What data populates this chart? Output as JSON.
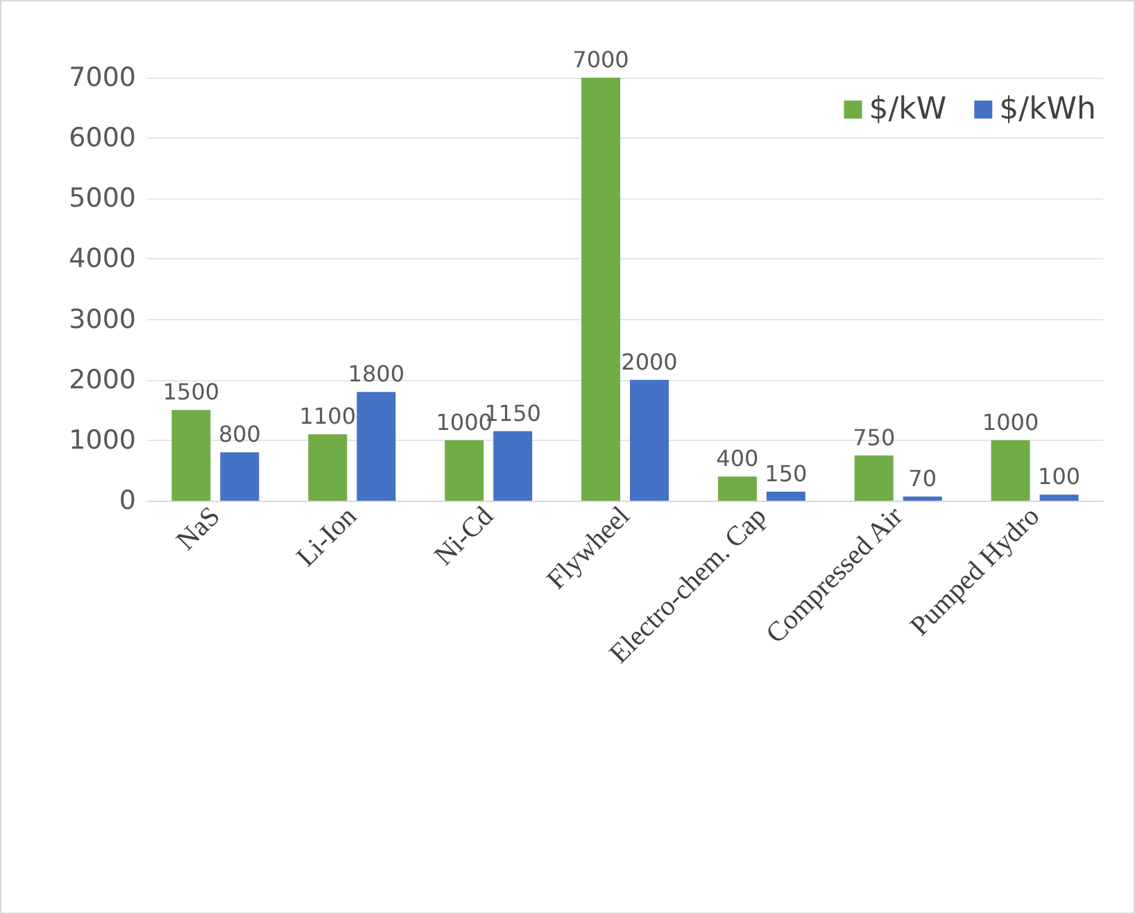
{
  "chart_data": {
    "type": "bar",
    "categories": [
      "NaS",
      "Li-Ion",
      "Ni-Cd",
      "Flywheel",
      "Electro-chem. Cap",
      "Compressed Air",
      "Pumped Hydro"
    ],
    "series": [
      {
        "name": "$/kW",
        "color": "#70ad47",
        "values": [
          1500,
          1100,
          1000,
          7000,
          400,
          750,
          1000
        ]
      },
      {
        "name": "$/kWh",
        "color": "#4472c4",
        "values": [
          800,
          1800,
          1150,
          2000,
          150,
          70,
          100
        ]
      }
    ],
    "ylim": [
      0,
      7000
    ],
    "yticks": [
      0,
      1000,
      2000,
      3000,
      4000,
      5000,
      6000,
      7000
    ],
    "grid": "y",
    "legend": "top right",
    "data_labels": true
  }
}
